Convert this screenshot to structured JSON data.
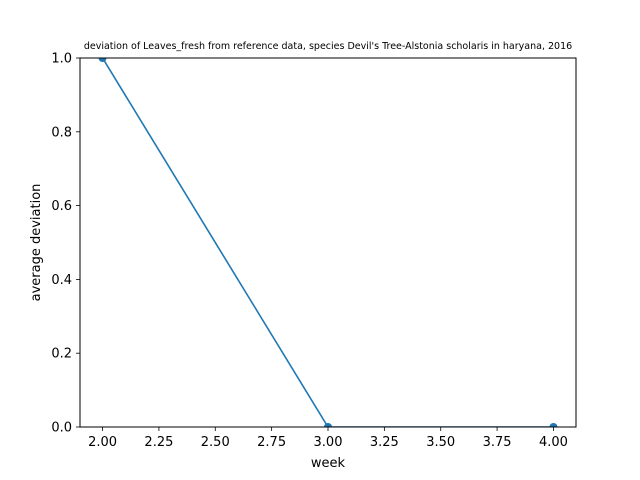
{
  "chart_data": {
    "type": "line",
    "title": "deviation of Leaves_fresh from reference data, species Devil's Tree-Alstonia scholaris in haryana, 2016",
    "xlabel": "week",
    "ylabel": "average deviation",
    "x": [
      2.0,
      3.0,
      4.0
    ],
    "series": [
      {
        "values": [
          1.0,
          0.0,
          0.0
        ],
        "color": "#1f77b4"
      }
    ],
    "xlim": [
      1.9,
      4.1
    ],
    "ylim": [
      0.0,
      1.0
    ],
    "xticks": [
      "2.00",
      "2.25",
      "2.50",
      "2.75",
      "3.00",
      "3.25",
      "3.50",
      "3.75",
      "4.00"
    ],
    "yticks": [
      "0.0",
      "0.2",
      "0.4",
      "0.6",
      "0.8",
      "1.0"
    ],
    "xtick_values": [
      2.0,
      2.25,
      2.5,
      2.75,
      3.0,
      3.25,
      3.5,
      3.75,
      4.0
    ],
    "ytick_values": [
      0.0,
      0.2,
      0.4,
      0.6,
      0.8,
      1.0
    ],
    "grid": false,
    "legend": "none"
  }
}
